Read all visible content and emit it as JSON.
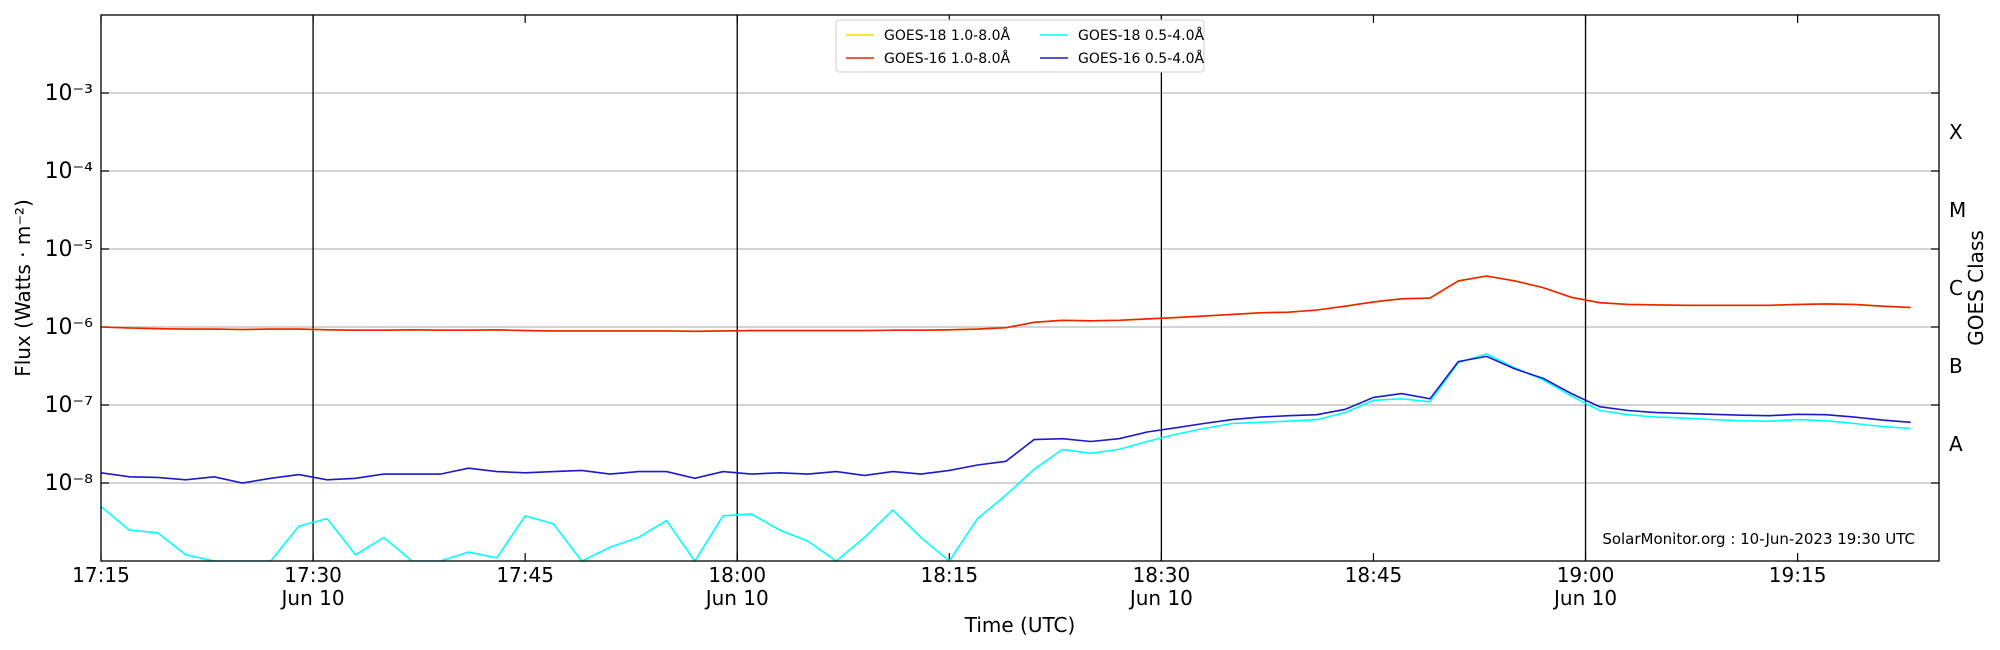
{
  "chart_data": {
    "type": "line",
    "xlabel": "Time (UTC)",
    "ylabel": "Flux (Watts · m⁻²)",
    "y2label": "GOES Class",
    "annotation": "SolarMonitor.org : 10-Jun-2023 19:30 UTC",
    "log_y": true,
    "grid": true,
    "legend": "top",
    "x": [
      "17:15",
      "17:17",
      "17:19",
      "17:21",
      "17:23",
      "17:25",
      "17:27",
      "17:29",
      "17:31",
      "17:33",
      "17:35",
      "17:37",
      "17:39",
      "17:41",
      "17:43",
      "17:45",
      "17:47",
      "17:49",
      "17:51",
      "17:53",
      "17:55",
      "17:57",
      "17:59",
      "18:01",
      "18:03",
      "18:05",
      "18:07",
      "18:09",
      "18:11",
      "18:13",
      "18:15",
      "18:17",
      "18:19",
      "18:21",
      "18:23",
      "18:25",
      "18:27",
      "18:29",
      "18:31",
      "18:33",
      "18:35",
      "18:37",
      "18:39",
      "18:41",
      "18:43",
      "18:45",
      "18:47",
      "18:49",
      "18:51",
      "18:53",
      "18:55",
      "18:57",
      "18:59",
      "19:01",
      "19:03",
      "19:05",
      "19:07",
      "19:09",
      "19:11",
      "19:13",
      "19:15",
      "19:17",
      "19:19",
      "19:21",
      "19:23"
    ],
    "xlim": [
      "17:15",
      "19:25"
    ],
    "xticks": [
      {
        "value": "17:15",
        "label": "17:15"
      },
      {
        "value": "17:30",
        "label": "17:30\nJun 10"
      },
      {
        "value": "17:45",
        "label": "17:45"
      },
      {
        "value": "18:00",
        "label": "18:00\nJun 10"
      },
      {
        "value": "18:15",
        "label": "18:15"
      },
      {
        "value": "18:30",
        "label": "18:30\nJun 10"
      },
      {
        "value": "18:45",
        "label": "18:45"
      },
      {
        "value": "19:00",
        "label": "19:00\nJun 10"
      },
      {
        "value": "19:15",
        "label": "19:15"
      }
    ],
    "vlines": [
      "17:30",
      "18:00",
      "18:30",
      "19:00"
    ],
    "ylim": [
      1e-09,
      0.01
    ],
    "yticks": [
      {
        "value": 1e-08,
        "label": "10⁻⁸"
      },
      {
        "value": 1e-07,
        "label": "10⁻⁷"
      },
      {
        "value": 1e-06,
        "label": "10⁻⁶"
      },
      {
        "value": 1e-05,
        "label": "10⁻⁵"
      },
      {
        "value": 0.0001,
        "label": "10⁻⁴"
      },
      {
        "value": 0.001,
        "label": "10⁻³"
      }
    ],
    "y2ticks": [
      {
        "value": 1e-08,
        "label": "A"
      },
      {
        "value": 1e-07,
        "label": "B"
      },
      {
        "value": 1e-06,
        "label": "C"
      },
      {
        "value": 1e-05,
        "label": "M"
      },
      {
        "value": 0.0001,
        "label": "X"
      }
    ],
    "series": [
      {
        "name": "GOES-18 1.0-8.0Å",
        "color": "#ffd700",
        "values": [
          1e-06,
          9.7e-07,
          9.5e-07,
          9.4e-07,
          9.4e-07,
          9.3e-07,
          9.4e-07,
          9.4e-07,
          9.2e-07,
          9.1e-07,
          9.1e-07,
          9.2e-07,
          9.1e-07,
          9.1e-07,
          9.2e-07,
          9e-07,
          8.9e-07,
          8.9e-07,
          8.9e-07,
          8.9e-07,
          8.9e-07,
          8.8e-07,
          8.9e-07,
          9e-07,
          9e-07,
          9e-07,
          9e-07,
          9e-07,
          9.1e-07,
          9.1e-07,
          9.2e-07,
          9.4e-07,
          9.8e-07,
          1.15e-06,
          1.22e-06,
          1.2e-06,
          1.22e-06,
          1.27e-06,
          1.32e-06,
          1.38e-06,
          1.45e-06,
          1.52e-06,
          1.55e-06,
          1.65e-06,
          1.85e-06,
          2.1e-06,
          2.3e-06,
          2.35e-06,
          3.9e-06,
          4.5e-06,
          3.9e-06,
          3.2e-06,
          2.4e-06,
          2.05e-06,
          1.95e-06,
          1.92e-06,
          1.9e-06,
          1.9e-06,
          1.9e-06,
          1.9e-06,
          1.95e-06,
          1.98e-06,
          1.95e-06,
          1.85e-06,
          1.78e-06
        ]
      },
      {
        "name": "GOES-16 1.0-8.0Å",
        "color": "#ee2200",
        "values": [
          1e-06,
          9.7e-07,
          9.5e-07,
          9.4e-07,
          9.4e-07,
          9.3e-07,
          9.4e-07,
          9.4e-07,
          9.2e-07,
          9.1e-07,
          9.1e-07,
          9.2e-07,
          9.1e-07,
          9.1e-07,
          9.2e-07,
          9e-07,
          8.9e-07,
          8.9e-07,
          8.9e-07,
          8.9e-07,
          8.9e-07,
          8.8e-07,
          8.9e-07,
          9e-07,
          9e-07,
          9e-07,
          9e-07,
          9e-07,
          9.1e-07,
          9.1e-07,
          9.2e-07,
          9.4e-07,
          9.8e-07,
          1.15e-06,
          1.22e-06,
          1.2e-06,
          1.22e-06,
          1.27e-06,
          1.32e-06,
          1.38e-06,
          1.45e-06,
          1.52e-06,
          1.55e-06,
          1.65e-06,
          1.85e-06,
          2.1e-06,
          2.3e-06,
          2.35e-06,
          3.9e-06,
          4.5e-06,
          3.9e-06,
          3.2e-06,
          2.4e-06,
          2.05e-06,
          1.95e-06,
          1.92e-06,
          1.9e-06,
          1.9e-06,
          1.9e-06,
          1.9e-06,
          1.95e-06,
          1.98e-06,
          1.95e-06,
          1.85e-06,
          1.78e-06
        ]
      },
      {
        "name": "GOES-18 0.5-4.0Å",
        "color": "#00ffff",
        "values": [
          5e-09,
          2.5e-09,
          2.3e-09,
          1.2e-09,
          1e-09,
          1e-09,
          1e-09,
          2.8e-09,
          3.5e-09,
          1.2e-09,
          2e-09,
          1e-09,
          1e-09,
          1.3e-09,
          1.1e-09,
          3.8e-09,
          3e-09,
          1e-09,
          1.5e-09,
          2e-09,
          3.3e-09,
          1e-09,
          3.8e-09,
          4e-09,
          2.5e-09,
          1.8e-09,
          1e-09,
          2e-09,
          4.5e-09,
          2e-09,
          1e-09,
          3.5e-09,
          7e-09,
          1.5e-08,
          2.7e-08,
          2.4e-08,
          2.7e-08,
          3.4e-08,
          4.2e-08,
          5e-08,
          5.8e-08,
          6e-08,
          6.2e-08,
          6.5e-08,
          8e-08,
          1.15e-07,
          1.2e-07,
          1.1e-07,
          3.5e-07,
          4.5e-07,
          3e-07,
          2.1e-07,
          1.3e-07,
          8.5e-08,
          7.5e-08,
          7e-08,
          6.8e-08,
          6.5e-08,
          6.3e-08,
          6.2e-08,
          6.5e-08,
          6.3e-08,
          5.8e-08,
          5.3e-08,
          5e-08
        ]
      },
      {
        "name": "GOES-16 0.5-4.0Å",
        "color": "#1a1acc",
        "values": [
          1.35e-08,
          1.2e-08,
          1.18e-08,
          1.1e-08,
          1.2e-08,
          1e-08,
          1.15e-08,
          1.28e-08,
          1.1e-08,
          1.15e-08,
          1.3e-08,
          1.3e-08,
          1.3e-08,
          1.55e-08,
          1.4e-08,
          1.35e-08,
          1.4e-08,
          1.45e-08,
          1.3e-08,
          1.4e-08,
          1.4e-08,
          1.15e-08,
          1.4e-08,
          1.3e-08,
          1.35e-08,
          1.3e-08,
          1.4e-08,
          1.25e-08,
          1.4e-08,
          1.3e-08,
          1.45e-08,
          1.7e-08,
          1.9e-08,
          3.6e-08,
          3.7e-08,
          3.4e-08,
          3.7e-08,
          4.5e-08,
          5.1e-08,
          5.8e-08,
          6.5e-08,
          7e-08,
          7.3e-08,
          7.5e-08,
          8.8e-08,
          1.25e-07,
          1.4e-07,
          1.2e-07,
          3.6e-07,
          4.2e-07,
          2.9e-07,
          2.2e-07,
          1.4e-07,
          9.5e-08,
          8.5e-08,
          8e-08,
          7.8e-08,
          7.6e-08,
          7.4e-08,
          7.3e-08,
          7.6e-08,
          7.5e-08,
          7e-08,
          6.4e-08,
          6e-08
        ]
      }
    ]
  }
}
